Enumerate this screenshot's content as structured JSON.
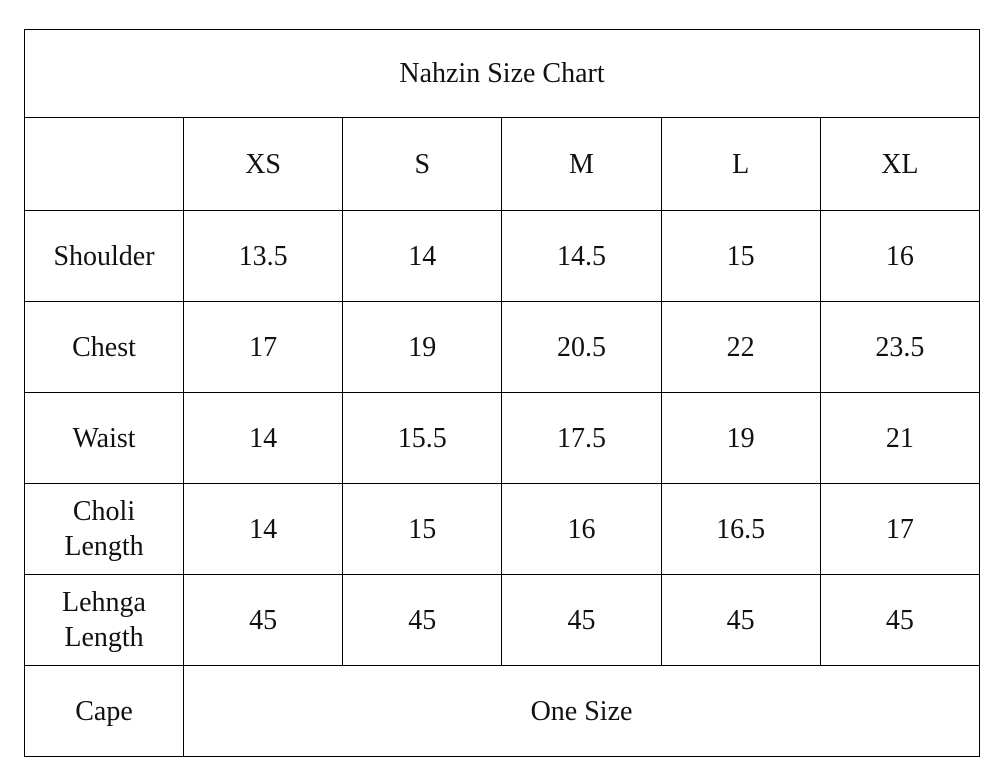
{
  "title": "Nahzin Size Chart",
  "header": [
    "XS",
    "S",
    "M",
    "L",
    "XL"
  ],
  "rows": [
    {
      "label": "Shoulder",
      "values": [
        "13.5",
        "14",
        "14.5",
        "15",
        "16"
      ]
    },
    {
      "label": "Chest",
      "values": [
        "17",
        "19",
        "20.5",
        "22",
        "23.5"
      ]
    },
    {
      "label": "Waist",
      "values": [
        "14",
        "15.5",
        "17.5",
        "19",
        "21"
      ]
    },
    {
      "label": "Choli Length",
      "values": [
        "14",
        "15",
        "16",
        "16.5",
        "17"
      ]
    },
    {
      "label": "Lehnga Length",
      "values": [
        "45",
        "45",
        "45",
        "45",
        "45"
      ]
    },
    {
      "label": "Cape",
      "values": [
        "One Size"
      ]
    }
  ]
}
